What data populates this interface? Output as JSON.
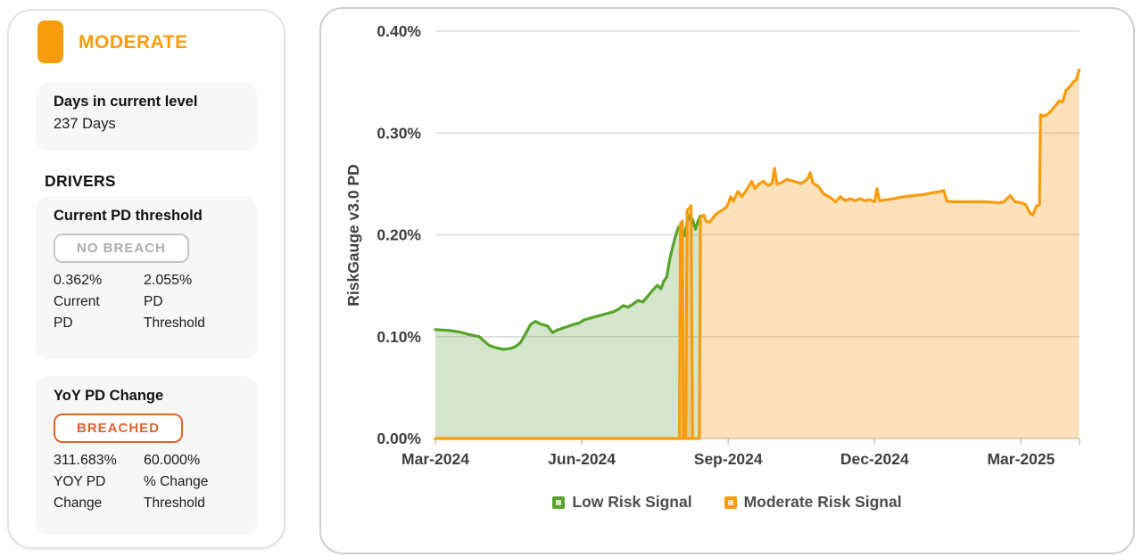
{
  "panel": {
    "level_label": "MODERATE",
    "days_card": {
      "title": "Days in current level",
      "value": "237 Days"
    },
    "drivers_heading": "DRIVERS",
    "driver_pd_threshold": {
      "title": "Current PD threshold",
      "status": "NO BREACH",
      "left": {
        "value": "0.362%",
        "label": "Current\nPD"
      },
      "right": {
        "value": "2.055%",
        "label": "PD\nThreshold"
      }
    },
    "driver_yoy_change": {
      "title": "YoY PD Change",
      "status": "BREACHED",
      "left": {
        "value": "311.683%",
        "label": "YOY PD\nChange"
      },
      "right": {
        "value": "60.000%",
        "label": "% Change\nThreshold"
      }
    }
  },
  "colors": {
    "accent_orange": "#F89B0D",
    "breach_orange_red": "#E0632D",
    "low_green": "#56A428",
    "low_green_fill": "rgba(97,160,65,0.27)",
    "moderate_orange_fill": "rgba(247,157,30,0.30)",
    "axis_text": "#3f3f3f",
    "gridline": "#dcdcdc",
    "card_gray": "#f7f7f7"
  },
  "chart_data": {
    "type": "area",
    "title": "",
    "xlabel": "",
    "ylabel": "RiskGauge v3.0 PD",
    "x_unit": "months since Mar-2024",
    "xlim": [
      0,
      13.2
    ],
    "ylim": [
      0,
      0.4
    ],
    "grid": true,
    "legend_position": "bottom",
    "yticks": [
      {
        "v": 0.4,
        "label": "0.40%"
      },
      {
        "v": 0.3,
        "label": "0.30%"
      },
      {
        "v": 0.2,
        "label": "0.20%"
      },
      {
        "v": 0.1,
        "label": "0.10%"
      },
      {
        "v": 0.0,
        "label": "0.00%"
      }
    ],
    "xticks": [
      {
        "m": 0,
        "label": "Mar-2024"
      },
      {
        "m": 3,
        "label": "Jun-2024"
      },
      {
        "m": 6,
        "label": "Sep-2024"
      },
      {
        "m": 9,
        "label": "Dec-2024"
      },
      {
        "m": 12,
        "label": "Mar-2025"
      },
      {
        "m": 13.2,
        "label": ""
      }
    ],
    "legend": [
      {
        "label": "Low Risk Signal",
        "color": "#56A428",
        "fill": "#DCE8CD"
      },
      {
        "label": "Moderate Risk Signal",
        "color": "#F89C0E",
        "fill": "#FBE3C0"
      }
    ],
    "series": [
      {
        "name": "Low Risk Signal",
        "color": "#56A428",
        "fill": "rgba(97,160,65,0.27)",
        "unit": "PD %",
        "segments": [
          [
            [
              0,
              0.107
            ],
            [
              0.15,
              0.1065
            ],
            [
              0.3,
              0.106
            ],
            [
              0.5,
              0.1045
            ],
            [
              0.7,
              0.102
            ],
            [
              0.9,
              0.1
            ],
            [
              1.0,
              0.0955
            ],
            [
              1.1,
              0.0915
            ],
            [
              1.25,
              0.089
            ],
            [
              1.4,
              0.0875
            ],
            [
              1.55,
              0.0885
            ],
            [
              1.65,
              0.0905
            ],
            [
              1.75,
              0.0945
            ],
            [
              1.85,
              0.103
            ],
            [
              1.95,
              0.112
            ],
            [
              2.05,
              0.115
            ],
            [
              2.15,
              0.1125
            ],
            [
              2.3,
              0.1105
            ],
            [
              2.4,
              0.104
            ],
            [
              2.5,
              0.1065
            ],
            [
              2.65,
              0.109
            ],
            [
              2.8,
              0.1115
            ],
            [
              2.95,
              0.1135
            ],
            [
              3.05,
              0.1165
            ],
            [
              3.2,
              0.1185
            ],
            [
              3.35,
              0.1205
            ],
            [
              3.5,
              0.1225
            ],
            [
              3.65,
              0.1245
            ],
            [
              3.75,
              0.127
            ],
            [
              3.85,
              0.1305
            ],
            [
              3.95,
              0.129
            ],
            [
              4.05,
              0.132
            ],
            [
              4.15,
              0.1355
            ],
            [
              4.25,
              0.134
            ],
            [
              4.35,
              0.1395
            ],
            [
              4.45,
              0.1455
            ],
            [
              4.55,
              0.1505
            ],
            [
              4.62,
              0.147
            ],
            [
              4.68,
              0.1545
            ],
            [
              4.74,
              0.1585
            ],
            [
              4.8,
              0.1755
            ],
            [
              4.86,
              0.1875
            ],
            [
              4.92,
              0.1985
            ],
            [
              4.98,
              0.2075
            ],
            [
              5.04,
              0.2035
            ],
            [
              5.1,
              0.199
            ],
            [
              5.16,
              0.2125
            ],
            [
              5.22,
              0.2195
            ],
            [
              5.28,
              0.2135
            ],
            [
              5.33,
              0.2055
            ],
            [
              5.38,
              0.2135
            ],
            [
              5.43,
              0.2185
            ]
          ]
        ]
      },
      {
        "name": "Moderate Risk Signal",
        "color": "#F89C0E",
        "fill": "rgba(247,157,30,0.30)",
        "unit": "PD %",
        "segments": [
          [
            [
              5.0,
              0
            ],
            [
              5.02,
              0.2105
            ],
            [
              5.06,
              0.2135
            ],
            [
              5.08,
              0
            ]
          ],
          [
            [
              5.13,
              0
            ],
            [
              5.16,
              0.224
            ],
            [
              5.24,
              0.2285
            ],
            [
              5.27,
              0
            ]
          ],
          [
            [
              0,
              0
            ],
            [
              5.41,
              0
            ],
            [
              5.43,
              0.2165
            ],
            [
              5.5,
              0.2195
            ],
            [
              5.55,
              0.213
            ],
            [
              5.62,
              0.2125
            ],
            [
              5.68,
              0.216
            ],
            [
              5.75,
              0.2205
            ],
            [
              5.85,
              0.2235
            ],
            [
              5.95,
              0.2265
            ],
            [
              6.0,
              0.2305
            ],
            [
              6.05,
              0.2375
            ],
            [
              6.1,
              0.233
            ],
            [
              6.2,
              0.2425
            ],
            [
              6.28,
              0.2375
            ],
            [
              6.38,
              0.2445
            ],
            [
              6.48,
              0.2525
            ],
            [
              6.55,
              0.2455
            ],
            [
              6.62,
              0.2495
            ],
            [
              6.72,
              0.2525
            ],
            [
              6.82,
              0.2485
            ],
            [
              6.9,
              0.2505
            ],
            [
              6.95,
              0.2655
            ],
            [
              7.0,
              0.2495
            ],
            [
              7.1,
              0.2515
            ],
            [
              7.2,
              0.2545
            ],
            [
              7.35,
              0.2525
            ],
            [
              7.5,
              0.2505
            ],
            [
              7.62,
              0.2545
            ],
            [
              7.68,
              0.261
            ],
            [
              7.74,
              0.2505
            ],
            [
              7.85,
              0.2475
            ],
            [
              7.95,
              0.2405
            ],
            [
              8.1,
              0.2365
            ],
            [
              8.2,
              0.2325
            ],
            [
              8.3,
              0.2375
            ],
            [
              8.4,
              0.2335
            ],
            [
              8.5,
              0.2355
            ],
            [
              8.6,
              0.2335
            ],
            [
              8.7,
              0.2355
            ],
            [
              8.8,
              0.2335
            ],
            [
              8.9,
              0.2345
            ],
            [
              9.0,
              0.2325
            ],
            [
              9.05,
              0.2455
            ],
            [
              9.1,
              0.2335
            ],
            [
              9.25,
              0.2345
            ],
            [
              9.4,
              0.2355
            ],
            [
              9.6,
              0.2375
            ],
            [
              9.8,
              0.2385
            ],
            [
              10.0,
              0.2395
            ],
            [
              10.2,
              0.2415
            ],
            [
              10.35,
              0.2425
            ],
            [
              10.42,
              0.2435
            ],
            [
              10.48,
              0.233
            ],
            [
              10.6,
              0.2325
            ],
            [
              10.8,
              0.2325
            ],
            [
              11.0,
              0.2325
            ],
            [
              11.2,
              0.2325
            ],
            [
              11.4,
              0.232
            ],
            [
              11.55,
              0.2315
            ],
            [
              11.65,
              0.2325
            ],
            [
              11.78,
              0.2385
            ],
            [
              11.88,
              0.2325
            ],
            [
              12.0,
              0.2315
            ],
            [
              12.1,
              0.2295
            ],
            [
              12.18,
              0.2215
            ],
            [
              12.24,
              0.2195
            ],
            [
              12.32,
              0.2285
            ],
            [
              12.38,
              0.2295
            ],
            [
              12.4,
              0.318
            ],
            [
              12.46,
              0.3165
            ],
            [
              12.55,
              0.3185
            ],
            [
              12.62,
              0.322
            ],
            [
              12.7,
              0.3265
            ],
            [
              12.78,
              0.3315
            ],
            [
              12.85,
              0.3305
            ],
            [
              12.92,
              0.3415
            ],
            [
              13.0,
              0.3455
            ],
            [
              13.08,
              0.3505
            ],
            [
              13.14,
              0.3525
            ],
            [
              13.19,
              0.362
            ]
          ]
        ]
      }
    ]
  }
}
